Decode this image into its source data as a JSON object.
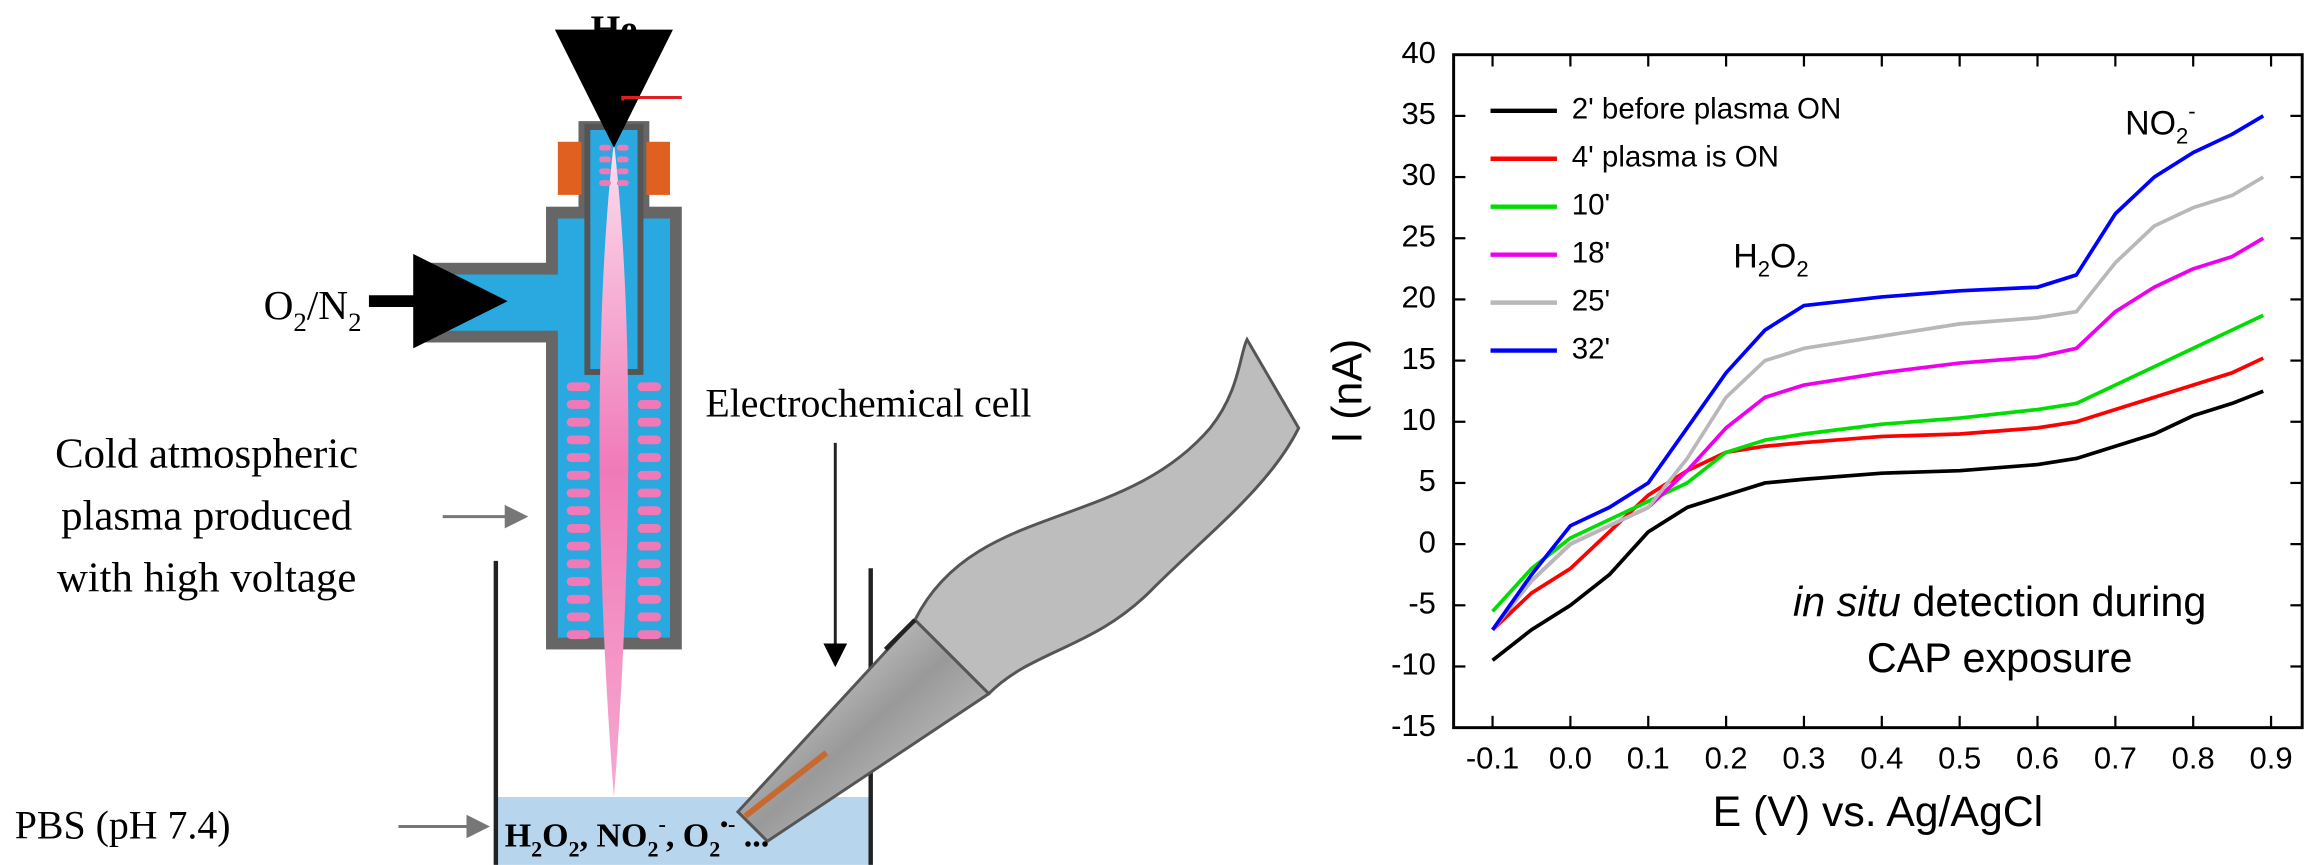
{
  "diagram": {
    "he": "He",
    "gas": {
      "parts": [
        {
          "t": "O"
        },
        {
          "t": "2",
          "sub": true
        },
        {
          "t": "/N"
        },
        {
          "t": "2",
          "sub": true
        }
      ]
    },
    "plasma_note": [
      "Cold atmospheric",
      "plasma produced",
      "with high voltage"
    ],
    "cell": "Electrochemical cell",
    "pbs": "PBS (pH 7.4)",
    "species": {
      "parts": [
        {
          "t": "H"
        },
        {
          "t": "2",
          "sub": true
        },
        {
          "t": "O"
        },
        {
          "t": "2",
          "sub": true
        },
        {
          "t": ", NO"
        },
        {
          "t": "2",
          "sub": true
        },
        {
          "t": "-",
          "sup": true
        },
        {
          "t": ", O"
        },
        {
          "t": "2",
          "sub": true
        },
        {
          "t": "•-",
          "sup": true
        },
        {
          "t": " ..."
        }
      ]
    }
  },
  "chart_data": {
    "type": "line",
    "xlabel": "E (V) vs. Ag/AgCl",
    "ylabel": "I (nA)",
    "x": [
      -0.1,
      -0.05,
      0,
      0.05,
      0.1,
      0.15,
      0.2,
      0.25,
      0.3,
      0.4,
      0.5,
      0.6,
      0.65,
      0.7,
      0.75,
      0.8,
      0.85,
      0.89
    ],
    "series": [
      {
        "name": "2' before plasma ON",
        "color": "#000000",
        "values": [
          -9.5,
          -7,
          -5,
          -2.5,
          1,
          3,
          4,
          5,
          5.3,
          5.8,
          6,
          6.5,
          7,
          8,
          9,
          10.5,
          11.5,
          12.5
        ]
      },
      {
        "name": "4' plasma is ON",
        "color": "#ff0000",
        "values": [
          -7,
          -4,
          -2,
          1,
          4,
          6,
          7.5,
          8,
          8.3,
          8.8,
          9,
          9.5,
          10,
          11,
          12,
          13,
          14,
          15.2
        ]
      },
      {
        "name": "10'",
        "color": "#00dd00",
        "values": [
          -5.5,
          -2,
          0.5,
          2,
          3.5,
          5,
          7.5,
          8.5,
          9,
          9.8,
          10.3,
          11,
          11.5,
          13,
          14.5,
          16,
          17.5,
          18.7
        ]
      },
      {
        "name": "18'",
        "color": "#ee00ee",
        "values": [
          -7,
          -3,
          0,
          1.5,
          3,
          6,
          9.5,
          12,
          13,
          14,
          14.8,
          15.3,
          16,
          19,
          21,
          22.5,
          23.5,
          25
        ]
      },
      {
        "name": "25'",
        "color": "#b8b8b8",
        "values": [
          -7,
          -3,
          0,
          1.5,
          3,
          7,
          12,
          15,
          16,
          17,
          18,
          18.5,
          19,
          23,
          26,
          27.5,
          28.5,
          30
        ]
      },
      {
        "name": "32'",
        "color": "#0000ff",
        "values": [
          -7,
          -2.5,
          1.5,
          3,
          5,
          9.5,
          14,
          17.5,
          19.5,
          20.2,
          20.7,
          21,
          22,
          27,
          30,
          32,
          33.5,
          35
        ]
      }
    ],
    "xlim": [
      -0.15,
      0.94
    ],
    "ylim": [
      -15,
      40
    ],
    "xticks": [
      -0.1,
      {
        "value": 0,
        "label": "0.0"
      },
      0.1,
      0.2,
      0.3,
      0.4,
      0.5,
      0.6,
      0.7,
      0.8,
      0.9
    ],
    "yticks": [
      -15,
      -10,
      -5,
      0,
      5,
      10,
      15,
      20,
      25,
      30,
      35,
      40
    ],
    "grid": false,
    "legend": "upper left",
    "annotations": [
      {
        "parts": [
          {
            "t": "H"
          },
          {
            "t": "2",
            "sub": true
          },
          {
            "t": "O"
          },
          {
            "t": "2",
            "sub": true
          }
        ]
      },
      {
        "parts": [
          {
            "t": "NO"
          },
          {
            "t": "2",
            "sub": true
          },
          {
            "t": "-",
            "sup": true
          }
        ]
      },
      {
        "parts": [
          {
            "t": "in situ",
            "italic": true
          },
          {
            "t": " detection during"
          }
        ]
      },
      {
        "parts": [
          {
            "t": "CAP exposure"
          }
        ]
      }
    ]
  }
}
